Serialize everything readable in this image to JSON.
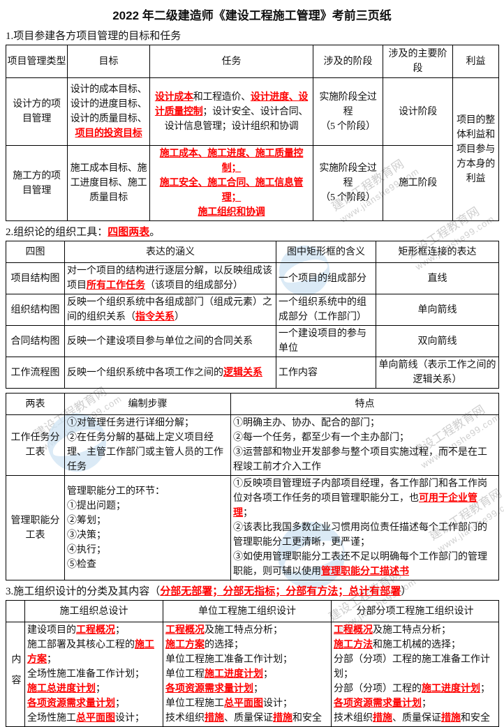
{
  "page_title": "2022 年二级建造师《建设工程施工管理》考前三页纸",
  "colors": {
    "highlight": "#fe0000",
    "text": "#111111",
    "border": "#000000",
    "watermark_gray": "#9f9f9f",
    "watermark_blue": "#cfe4f3"
  },
  "watermark": {
    "line1": "建设工程教育网",
    "line2": "www.jianshe99.com"
  },
  "sections": {
    "s1": {
      "heading": [
        [
          "1.项目参建各方项目管理的目标和任务"
        ]
      ],
      "table": {
        "headers": [
          "项目管理类型",
          "目标",
          "任务",
          "涉及的阶段",
          "涉及的主要阶段",
          "利益"
        ],
        "rows": {
          "design": {
            "type": [
              [
                "设计方的项目管理"
              ]
            ],
            "goal": [
              [
                "设计的成本目标、设计的进度目标、设计的质量目标、",
                {
                  "t": "项目的投资目标"
                }
              ]
            ],
            "task": [
              [
                {
                  "t": "设计成本"
                },
                "和工程造价、",
                {
                  "t": "设计进度、设计质量控制"
                },
                "；设计安全、设计合同、设计信息管理；设计组织和协调"
              ]
            ],
            "stages": [
              [
                "实施阶段全过程"
              ],
              [
                "（5 个阶段）"
              ]
            ],
            "main_stage": "设计阶段",
            "benefit": "项目的整体利益和项目参与方本身的利益"
          },
          "construction": {
            "type": [
              [
                "施工方的项目管理"
              ]
            ],
            "goal": [
              [
                "施工成本目标、施工进度目标、施工质量目标"
              ]
            ],
            "task": [
              [
                {
                  "t": "施工成本、施工进度、施工质量控制；"
                }
              ],
              [
                {
                  "t": "施工安全、施工合同、施工信息管理；"
                }
              ],
              [
                {
                  "t": "施工组织和协调"
                }
              ]
            ],
            "stages": [
              [
                "实施阶段全过程"
              ],
              [
                "（5 个阶段）"
              ]
            ],
            "main_stage": "施工阶段"
          }
        }
      }
    },
    "s2": {
      "heading": [
        [
          "2.组织论的组织工具：",
          {
            "t": "四图两表"
          },
          "。"
        ]
      ],
      "four_charts": {
        "headers": [
          "四图",
          "表达的涵义",
          "图中矩形框的含义",
          "矩形框连接的表达"
        ],
        "rows": [
          {
            "name": "项目结构图",
            "meaning": [
              [
                "对一个项目的结构进行逐层分解，以反映组成该项目",
                {
                  "t": "所有工作任务"
                },
                "（该项目的组成部分）"
              ]
            ],
            "box": [
              [
                "一个项目的组成部分"
              ]
            ],
            "connect": [
              [
                "直线"
              ]
            ]
          },
          {
            "name": "组织结构图",
            "meaning": [
              [
                "反映一个组织系统中各组成部门（组成元素）之间的组织关系（",
                {
                  "t": "指令关系"
                },
                "）"
              ]
            ],
            "box": [
              [
                "一个组织系统中的组成部分（工作部门）"
              ]
            ],
            "connect": [
              [
                "单向箭线"
              ]
            ]
          },
          {
            "name": "合同结构图",
            "meaning": [
              [
                "反映一个建设项目参与单位之间的合同关系"
              ]
            ],
            "box": [
              [
                "一个建设项目的参与单位"
              ]
            ],
            "connect": [
              [
                "双向箭线"
              ]
            ]
          },
          {
            "name": "工作流程图",
            "meaning": [
              [
                "反映一个组织系统中各项工作之间的",
                {
                  "t": "逻辑关系"
                }
              ]
            ],
            "box": [
              [
                "工作内容"
              ]
            ],
            "connect": [
              [
                "单向箭线（表示工作之间的逻辑关系）"
              ]
            ]
          }
        ]
      },
      "two_tables": {
        "headers": [
          "两表",
          "编制步骤",
          "特点"
        ],
        "rows": [
          {
            "name": "工作任务分工表",
            "steps": [
              [
                "①对管理任务进行详细分解；"
              ],
              [
                "②在任务分解的基础上定义项目经理、主管工作部门或主管人员的工作任务"
              ]
            ],
            "features": [
              [
                "①明确主办、协办、配合的部门；"
              ],
              [
                "②每一个任务，都至少有一个主办部门；"
              ],
              [
                "③运营部和物业开发部参与整个项目实施过程，而不是在工程竣工前才介入工作"
              ]
            ]
          },
          {
            "name": "管理职能分工表",
            "steps": [
              [
                "管理职能分工的环节："
              ],
              [
                "①提出问题；"
              ],
              [
                "②筹划；"
              ],
              [
                "③决策；"
              ],
              [
                "④执行；"
              ],
              [
                "⑤检查"
              ]
            ],
            "features": [
              [
                "①反映项目管理班子内部项目经理，各工作部门和各工作岗位对各项工作任务的项目管理职能分工，也",
                {
                  "t": "可用于企业管理"
                },
                "；"
              ],
              [
                "②该表比我国多数企业习惯用岗位责任描述每个工作部门的管理职能分工更清晰，更严谨；"
              ],
              [
                "③如使用管理职能分工表还不足以明确每个工作部门的管理职能，则可辅以使用",
                {
                  "t": "管理职能分工描述书"
                }
              ]
            ]
          }
        ]
      }
    },
    "s3": {
      "heading": [
        [
          "3.施工组织设计的分类及其内容（",
          {
            "t": "分部无部署；分部无指标；分部有方法；总计有部署"
          },
          "）"
        ]
      ],
      "table": {
        "headers": [
          "",
          "施工组织总设计",
          "单位工程施工组织设计",
          "分部分项工程施工组织设计"
        ],
        "row_label": "内容",
        "general": [
          [
            "建设项目的",
            {
              "t": "工程概况"
            },
            "；"
          ],
          [
            "施工部署及其核心工程的",
            {
              "t": "施工方案"
            },
            "；"
          ],
          [
            "全场性施工准备工作计划；"
          ],
          [
            {
              "t": "施工总进度计划"
            },
            "；"
          ],
          [
            {
              "t": "各项资源需求量计划"
            },
            "；"
          ],
          [
            "全场性施工",
            {
              "t": "总平面图"
            },
            "设计；"
          ]
        ],
        "unit": [
          [
            {
              "t": "工程概况"
            },
            "及施工特点分析；"
          ],
          [
            {
              "t": "施工方案"
            },
            "的选择；"
          ],
          [
            "单位工程施工准备工作计划；"
          ],
          [
            "单位工程",
            {
              "t": "施工进度计划"
            },
            "；"
          ],
          [
            {
              "t": "各项资源需求量计划"
            },
            "；"
          ],
          [
            "单位工程施工",
            {
              "t": "总平面图"
            },
            "设计；"
          ],
          [
            "技术组织",
            {
              "t": "措施"
            },
            "、质量保证",
            {
              "t": "措施"
            },
            "和安全"
          ]
        ],
        "sub": [
          [
            {
              "t": "工程概况"
            },
            "及施工特点分析；"
          ],
          [
            {
              "t": "施工方法"
            },
            "和施工机械的选择；"
          ],
          [
            "分部（分项）工程的施工准备工作计划；"
          ],
          [
            "分部（分项）工程的",
            {
              "t": "施工进度计划"
            },
            "；"
          ],
          [
            {
              "t": "各项资源需求量计划"
            },
            "；"
          ],
          [
            "技术组织",
            {
              "t": "措施"
            },
            "、质量保证",
            {
              "t": "措施"
            },
            "和安全"
          ]
        ]
      }
    }
  }
}
